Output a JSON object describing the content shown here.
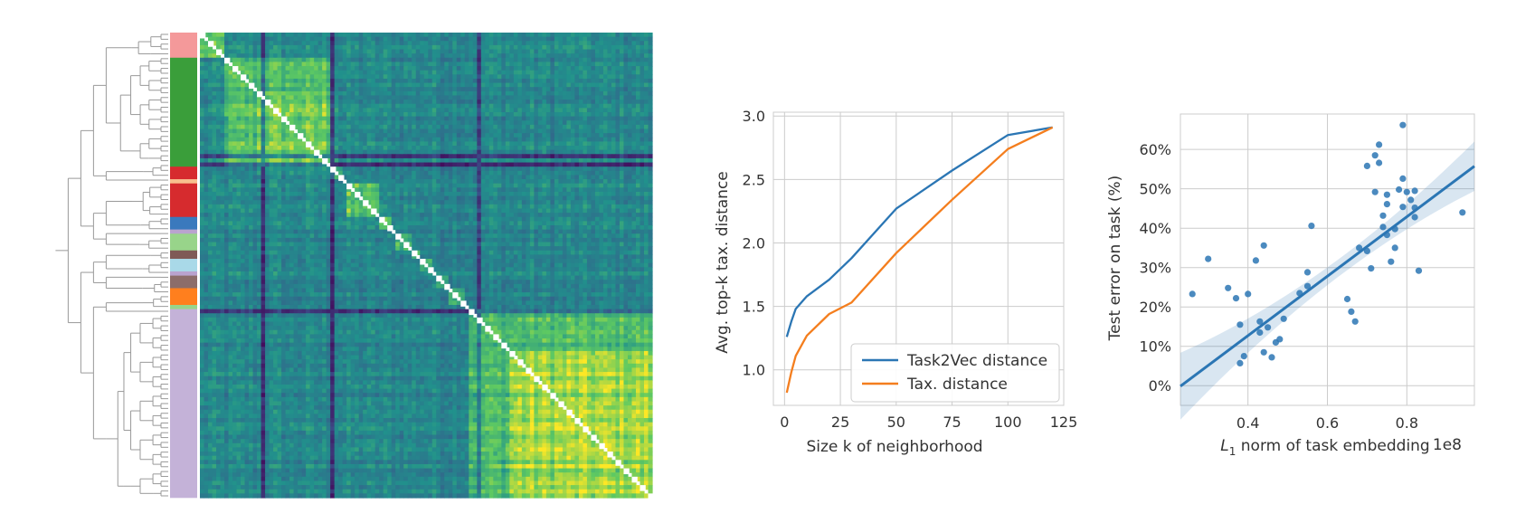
{
  "chart_data": [
    {
      "type": "heatmap",
      "description_free": true,
      "dendrogram": true,
      "colormap": "viridis",
      "taxonomy_colors": [
        "#f4999a",
        "#3a9e3a",
        "#d62b2e",
        "#f8c08e",
        "#d62b2e",
        "#3a79bd",
        "#b9a3cf",
        "#98d48a",
        "#7f5a56",
        "#a9d9e8",
        "#b9a3cf",
        "#8c6d6a",
        "#ff7f1e",
        "#98d48a",
        "#c4b2d8"
      ],
      "taxonomy_rows": [
        6,
        26,
        3,
        1,
        8,
        3,
        1,
        4,
        2,
        3,
        1,
        3,
        4,
        1,
        45
      ],
      "grid_size": 111
    },
    {
      "type": "line",
      "title": "",
      "xlabel": "Size k of neighborhood",
      "ylabel": "Avg. top-k tax. distance",
      "xlim": [
        -5,
        125
      ],
      "ylim": [
        0.72,
        3.03
      ],
      "xticks": [
        0,
        25,
        50,
        75,
        100,
        125
      ],
      "yticks": [
        1.0,
        1.5,
        2.0,
        2.5,
        3.0
      ],
      "grid": true,
      "legend": "lower-right",
      "series": [
        {
          "name": "Task2Vec distance",
          "color": "#2b76b4",
          "x": [
            1,
            3,
            5,
            10,
            20,
            30,
            50,
            75,
            100,
            120
          ],
          "y": [
            1.26,
            1.38,
            1.48,
            1.58,
            1.71,
            1.88,
            2.27,
            2.57,
            2.85,
            2.91
          ]
        },
        {
          "name": "Tax. distance",
          "color": "#f47e1e",
          "x": [
            1,
            3,
            5,
            10,
            20,
            30,
            50,
            75,
            100,
            120
          ],
          "y": [
            0.82,
            0.98,
            1.11,
            1.27,
            1.44,
            1.53,
            1.92,
            2.34,
            2.74,
            2.91
          ]
        }
      ]
    },
    {
      "type": "scatter",
      "title": "",
      "xlabel": "L1 norm of task embedding",
      "xlabel_main": "L",
      "xlabel_sub": "1",
      "xlabel_rest": " norm of task embedding",
      "x_offset_label": "1e8",
      "ylabel": "Test error on task (%)",
      "xlim": [
        0.23,
        0.97
      ],
      "ylim": [
        -0.05,
        0.69
      ],
      "xticks": [
        0.4,
        0.6,
        0.8
      ],
      "xticklabels": [
        "0.4",
        "0.6",
        "0.8"
      ],
      "yticks": [
        0,
        0.1,
        0.2,
        0.3,
        0.4,
        0.5,
        0.6
      ],
      "yticklabels": [
        "0%",
        "10%",
        "20%",
        "30%",
        "40%",
        "50%",
        "60%"
      ],
      "grid": true,
      "color": "#2b76b4",
      "regression": {
        "intercept": -0.175,
        "slope": 0.755
      },
      "points": [
        [
          0.26,
          0.233
        ],
        [
          0.3,
          0.322
        ],
        [
          0.35,
          0.248
        ],
        [
          0.37,
          0.222
        ],
        [
          0.38,
          0.155
        ],
        [
          0.38,
          0.057
        ],
        [
          0.39,
          0.075
        ],
        [
          0.4,
          0.233
        ],
        [
          0.42,
          0.318
        ],
        [
          0.43,
          0.135
        ],
        [
          0.43,
          0.163
        ],
        [
          0.44,
          0.356
        ],
        [
          0.44,
          0.085
        ],
        [
          0.45,
          0.148
        ],
        [
          0.46,
          0.072
        ],
        [
          0.47,
          0.11
        ],
        [
          0.48,
          0.118
        ],
        [
          0.49,
          0.17
        ],
        [
          0.53,
          0.235
        ],
        [
          0.55,
          0.288
        ],
        [
          0.55,
          0.253
        ],
        [
          0.56,
          0.406
        ],
        [
          0.65,
          0.22
        ],
        [
          0.66,
          0.188
        ],
        [
          0.67,
          0.163
        ],
        [
          0.68,
          0.35
        ],
        [
          0.7,
          0.342
        ],
        [
          0.71,
          0.298
        ],
        [
          0.72,
          0.492
        ],
        [
          0.7,
          0.558
        ],
        [
          0.72,
          0.585
        ],
        [
          0.73,
          0.566
        ],
        [
          0.73,
          0.612
        ],
        [
          0.74,
          0.403
        ],
        [
          0.74,
          0.432
        ],
        [
          0.75,
          0.461
        ],
        [
          0.75,
          0.485
        ],
        [
          0.75,
          0.383
        ],
        [
          0.76,
          0.315
        ],
        [
          0.77,
          0.398
        ],
        [
          0.77,
          0.35
        ],
        [
          0.78,
          0.498
        ],
        [
          0.79,
          0.454
        ],
        [
          0.79,
          0.526
        ],
        [
          0.79,
          0.662
        ],
        [
          0.8,
          0.492
        ],
        [
          0.81,
          0.472
        ],
        [
          0.82,
          0.428
        ],
        [
          0.82,
          0.452
        ],
        [
          0.82,
          0.495
        ],
        [
          0.83,
          0.292
        ],
        [
          0.94,
          0.44
        ]
      ]
    }
  ]
}
